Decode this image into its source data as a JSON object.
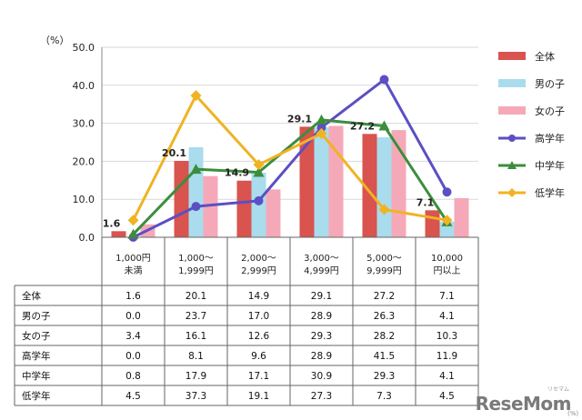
{
  "chart_data": {
    "type": "bar+line",
    "yunit": "（%）",
    "ylim": [
      0,
      50
    ],
    "yticks": [
      "0.0",
      "10.0",
      "20.0",
      "30.0",
      "40.0",
      "50.0"
    ],
    "categories": [
      [
        "1,000円",
        "未満"
      ],
      [
        "1,000～",
        "1,999円"
      ],
      [
        "2,000～",
        "2,999円"
      ],
      [
        "3,000～",
        "4,999円"
      ],
      [
        "5,000～",
        "9,999円"
      ],
      [
        "10,000",
        "円以上"
      ]
    ],
    "bar_series": [
      {
        "name": "全体",
        "color": "#d9534f",
        "values": [
          1.6,
          20.1,
          14.9,
          29.1,
          27.2,
          7.1
        ]
      },
      {
        "name": "男の子",
        "color": "#a9dced",
        "values": [
          0.0,
          23.7,
          17.0,
          28.9,
          26.3,
          4.1
        ]
      },
      {
        "name": "女の子",
        "color": "#f5a9b8",
        "values": [
          3.4,
          16.1,
          12.6,
          29.3,
          28.2,
          10.3
        ]
      }
    ],
    "line_series": [
      {
        "name": "高学年",
        "color": "#5b4fc4",
        "marker": "circle",
        "values": [
          0.0,
          8.1,
          9.6,
          28.9,
          41.5,
          11.9
        ]
      },
      {
        "name": "中学年",
        "color": "#3c8d3c",
        "marker": "triangle",
        "values": [
          0.8,
          17.9,
          17.1,
          30.9,
          29.3,
          4.1
        ]
      },
      {
        "name": "低学年",
        "color": "#f0b323",
        "marker": "diamond",
        "values": [
          4.5,
          37.3,
          19.1,
          27.3,
          7.3,
          4.5
        ]
      }
    ],
    "data_labels": [
      "1.6",
      "20.1",
      "14.9",
      "29.1",
      "27.2",
      "7.1"
    ],
    "table": {
      "rows": [
        {
          "label": "全体",
          "values": [
            "1.6",
            "20.1",
            "14.9",
            "29.1",
            "27.2",
            "7.1"
          ]
        },
        {
          "label": "男の子",
          "values": [
            "0.0",
            "23.7",
            "17.0",
            "28.9",
            "26.3",
            "4.1"
          ]
        },
        {
          "label": "女の子",
          "values": [
            "3.4",
            "16.1",
            "12.6",
            "29.3",
            "28.2",
            "10.3"
          ]
        },
        {
          "label": "高学年",
          "values": [
            "0.0",
            "8.1",
            "9.6",
            "28.9",
            "41.5",
            "11.9"
          ]
        },
        {
          "label": "中学年",
          "values": [
            "0.8",
            "17.9",
            "17.1",
            "30.9",
            "29.3",
            "4.1"
          ]
        },
        {
          "label": "低学年",
          "values": [
            "4.5",
            "37.3",
            "19.1",
            "27.3",
            "7.3",
            "4.5"
          ]
        }
      ]
    }
  },
  "watermark": {
    "text": "ReseMom",
    "tag": "リセマム"
  },
  "footnote_unit": "(%)"
}
